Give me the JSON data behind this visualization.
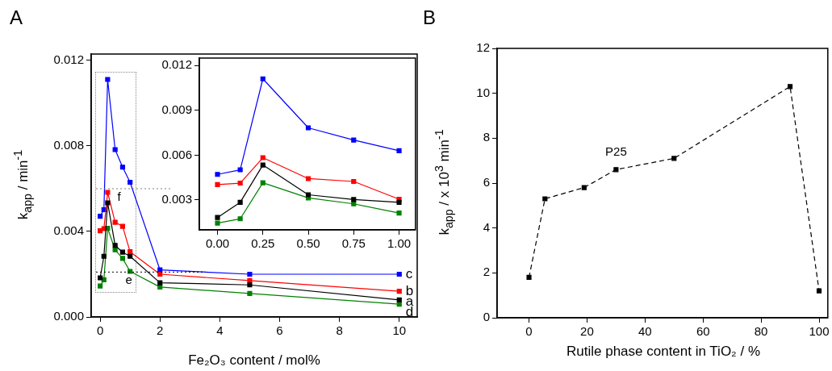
{
  "chart_data": [
    {
      "type": "line",
      "title": "A",
      "xlabel": "Fe₂O₃ content / mol%",
      "ylabel": "k$_{app}$ / min$^{-1}$",
      "x": [
        0,
        0.125,
        0.25,
        0.5,
        0.75,
        1,
        2,
        5,
        10
      ],
      "series": [
        {
          "name": "a",
          "color": "#000000",
          "values": [
            0.00183,
            0.00284,
            0.00534,
            0.00335,
            0.00303,
            0.00284,
            0.0016,
            0.0015,
            0.0008
          ]
        },
        {
          "name": "b",
          "color": "#ff0000",
          "values": [
            0.00403,
            0.00413,
            0.00583,
            0.00443,
            0.00424,
            0.00305,
            0.002,
            0.0017,
            0.0012
          ]
        },
        {
          "name": "c",
          "color": "#0000ff",
          "values": [
            0.00471,
            0.00502,
            0.01111,
            0.00783,
            0.00701,
            0.0063,
            0.0022,
            0.002,
            0.002
          ]
        },
        {
          "name": "d",
          "color": "#008000",
          "values": [
            0.00145,
            0.00174,
            0.00415,
            0.00314,
            0.00274,
            0.00213,
            0.0014,
            0.0011,
            0.0006
          ]
        }
      ],
      "xlim": [
        -0.3,
        10.6
      ],
      "ylim": [
        0,
        0.0123
      ],
      "xticks": [
        0,
        2,
        4,
        6,
        8,
        10
      ],
      "yticks": [
        {
          "value": 0,
          "label": "0.000"
        },
        0.004,
        0.008,
        0.012
      ],
      "ref_lines": [
        {
          "axis": "y",
          "value": 0.006,
          "label": "f",
          "color": "#808080",
          "line_style": "dotted"
        },
        {
          "axis": "y",
          "value": 0.0021,
          "label": "e",
          "color": "#000000",
          "line_style": "dotted"
        }
      ],
      "grid": false,
      "legend": false,
      "marker": "square",
      "line_style": "solid"
    },
    {
      "type": "line",
      "x": [
        0,
        0.125,
        0.25,
        0.5,
        0.75,
        1
      ],
      "series": [
        {
          "color": "#000000",
          "values": [
            0.00183,
            0.00284,
            0.00534,
            0.00335,
            0.00303,
            0.00284
          ]
        },
        {
          "color": "#ff0000",
          "values": [
            0.00403,
            0.00413,
            0.00583,
            0.00443,
            0.00424,
            0.00305
          ]
        },
        {
          "color": "#0000ff",
          "values": [
            0.00471,
            0.00502,
            0.01111,
            0.00783,
            0.00701,
            0.0063
          ]
        },
        {
          "color": "#008000",
          "values": [
            0.00145,
            0.00174,
            0.00415,
            0.00314,
            0.00274,
            0.00213
          ]
        }
      ],
      "xlim": [
        -0.1,
        1.09
      ],
      "ylim": [
        0.001,
        0.0125
      ],
      "xticks": [
        {
          "value": 0,
          "label": "0.00"
        },
        {
          "value": 0.25,
          "label": "0.25"
        },
        {
          "value": 0.5,
          "label": "0.50"
        },
        {
          "value": 0.75,
          "label": "0.75"
        },
        {
          "value": 1,
          "label": "1.00"
        }
      ],
      "yticks": [
        0.003,
        0.006,
        0.009,
        0.012
      ],
      "grid": false,
      "legend": false,
      "marker": "square",
      "line_style": "solid"
    },
    {
      "type": "line",
      "title": "B",
      "xlabel": "Rutile phase content in TiO₂ / %",
      "ylabel": "k$_{app}$ / x 10$^{3}$ min$^{-1}$",
      "x": [
        0,
        5.5,
        19,
        30,
        50,
        90,
        100
      ],
      "values": [
        1.8,
        5.3,
        5.8,
        6.6,
        7.1,
        10.3,
        1.2
      ],
      "color": "#000000",
      "xlim": [
        -11,
        103
      ],
      "ylim": [
        0,
        12
      ],
      "xticks": [
        0,
        20,
        40,
        60,
        80,
        100
      ],
      "yticks": [
        0,
        2,
        4,
        6,
        8,
        10,
        12
      ],
      "annotations": [
        {
          "text": "P25",
          "x": 30,
          "y": 6.6
        }
      ],
      "grid": false,
      "legend": false,
      "marker": "square",
      "line_style": "dashed"
    }
  ]
}
